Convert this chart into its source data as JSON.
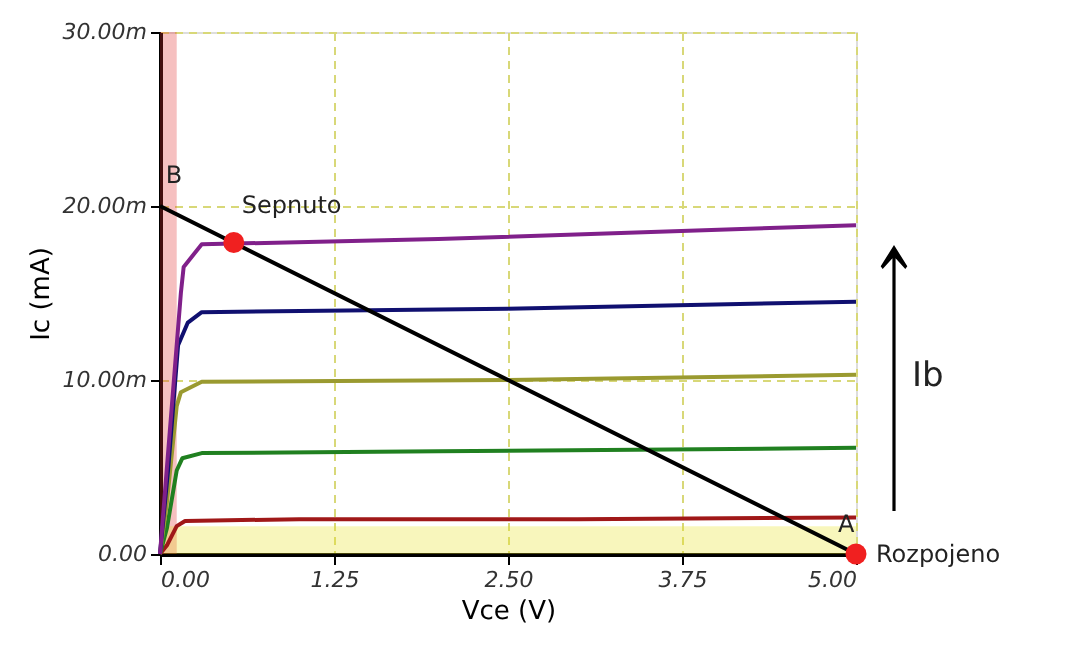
{
  "chart_data": {
    "type": "line",
    "xlabel": "Vce (V)",
    "ylabel": "Ic (mA)",
    "xlim": [
      0,
      5
    ],
    "ylim": [
      0,
      30
    ],
    "xticks": [
      {
        "value": 0,
        "label": "0.00"
      },
      1.25,
      {
        "value": 2.5,
        "label": "2.50"
      },
      3.75,
      {
        "value": 5,
        "label": "5.00"
      }
    ],
    "yticks": [
      {
        "value": 0,
        "label": "0.00"
      },
      {
        "value": 10,
        "label": "10.00m"
      },
      {
        "value": 20,
        "label": "20.00m"
      },
      {
        "value": 30,
        "label": "30.00m"
      }
    ],
    "grid": true,
    "series": [
      {
        "color": "#a01818",
        "x": [
          0,
          0.05,
          0.12,
          0.18,
          1,
          3,
          5
        ],
        "values": [
          0,
          0.5,
          1.6,
          1.9,
          2.0,
          2.0,
          2.1
        ]
      },
      {
        "color": "#208020",
        "x": [
          0,
          0.05,
          0.12,
          0.16,
          0.3,
          2,
          5
        ],
        "values": [
          0,
          1.5,
          4.8,
          5.5,
          5.8,
          5.9,
          6.1
        ]
      },
      {
        "color": "#9a9a30",
        "x": [
          0,
          0.05,
          0.12,
          0.15,
          0.3,
          2.5,
          5
        ],
        "values": [
          0,
          3,
          8.5,
          9.3,
          9.9,
          10.0,
          10.3
        ]
      },
      {
        "color": "#101070",
        "x": [
          0,
          0.06,
          0.13,
          0.2,
          0.3,
          2.5,
          5
        ],
        "values": [
          0,
          5,
          12,
          13.3,
          13.9,
          14.1,
          14.5
        ]
      },
      {
        "color": "#80208a",
        "x": [
          0,
          0.07,
          0.15,
          0.17,
          0.3,
          2,
          5
        ],
        "values": [
          0,
          7,
          15,
          16.5,
          17.8,
          18.1,
          18.9
        ]
      },
      {
        "color": "#000000",
        "x": [
          0,
          5
        ],
        "values": [
          20,
          0
        ]
      },
      {
        "type": "scatter",
        "color": "#f02020",
        "x": [
          0.53,
          5
        ],
        "values": [
          17.9,
          0
        ]
      }
    ],
    "bands": [
      {
        "axis": "x",
        "from": 0,
        "to": 0.12,
        "color": "#e03030"
      },
      {
        "axis": "y",
        "from": 0,
        "to": 1.6,
        "color": "#e8e020"
      }
    ],
    "annotations": [
      {
        "text": "B",
        "x": 0.1,
        "y": 21
      },
      {
        "text": "Sepnuto",
        "x": 0.53,
        "y": 17.9
      },
      {
        "text": "A",
        "x": 4.93,
        "y": 0.9
      },
      {
        "text": "Rozpojeno",
        "x": 5,
        "y": 0
      },
      "Ib"
    ]
  }
}
